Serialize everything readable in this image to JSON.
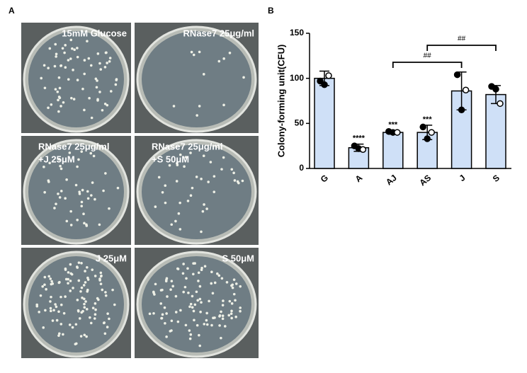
{
  "panel_a": {
    "label": "A",
    "plates": [
      {
        "lines": [
          "15mM Glucose"
        ]
      },
      {
        "lines": [
          "RNase7 25μg/ml"
        ]
      },
      {
        "lines": [
          "RNase7 25μg/ml",
          "+J 25μM"
        ]
      },
      {
        "lines": [
          "RNase7 25μg/ml",
          "+S 50μM"
        ]
      },
      {
        "lines": [
          "J 25μM"
        ]
      },
      {
        "lines": [
          "S 50μM"
        ]
      }
    ]
  },
  "panel_b_label": "B",
  "chart_data": {
    "type": "bar",
    "ylabel": "Colony-forming unit(CFU)",
    "categories": [
      "G",
      "A",
      "AJ",
      "AS",
      "J",
      "S"
    ],
    "values": [
      100,
      23,
      40,
      40,
      86,
      82
    ],
    "errors": [
      8,
      4,
      2,
      8,
      21,
      10
    ],
    "points": [
      [
        97,
        93,
        103
      ],
      [
        25,
        22,
        21
      ],
      [
        41,
        40,
        40
      ],
      [
        46,
        33,
        40
      ],
      [
        104,
        65,
        87
      ],
      [
        91,
        88,
        72
      ]
    ],
    "sig_labels": [
      null,
      "****",
      "***",
      "***",
      null,
      null
    ],
    "comparisons": [
      {
        "label": "##",
        "from": "AJ",
        "to": "J"
      },
      {
        "label": "##",
        "from": "AS",
        "to": "S"
      }
    ],
    "color": "#cfe0f7",
    "ylim": [
      0,
      150
    ],
    "yticks": [
      0,
      50,
      100,
      150
    ]
  }
}
